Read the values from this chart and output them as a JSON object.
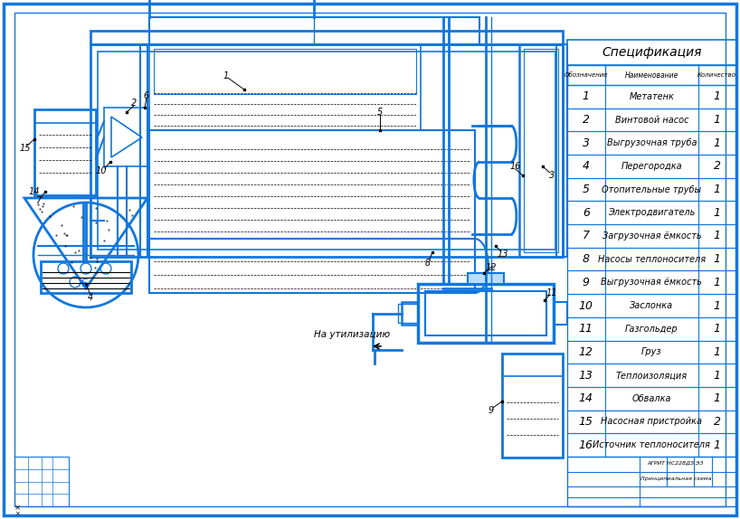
{
  "bg_color": "#ffffff",
  "lc": "#1177dd",
  "black": "#000000",
  "spec_title": "Спецификация",
  "spec_headers": [
    "Обозначение",
    "Наименование",
    "Количество"
  ],
  "spec_rows": [
    [
      "1",
      "Метатенк",
      "1"
    ],
    [
      "2",
      "Винтовой насос",
      "1"
    ],
    [
      "3",
      "Выгрузочная труба",
      "1"
    ],
    [
      "4",
      "Перегородка",
      "2"
    ],
    [
      "5",
      "Отопительные трубы",
      "1"
    ],
    [
      "6",
      "Электродвигатель",
      "1"
    ],
    [
      "7",
      "Загрузочная ёмкость",
      "1"
    ],
    [
      "8",
      "Насосы теплоносителя",
      "1"
    ],
    [
      "9",
      "Выгрузочная ёмкость",
      "1"
    ],
    [
      "10",
      "Заслонка",
      "1"
    ],
    [
      "11",
      "Газгольдер",
      "1"
    ],
    [
      "12",
      "Груз",
      "1"
    ],
    [
      "13",
      "Теплоизоляция",
      "1"
    ],
    [
      "14",
      "Обвалка",
      "1"
    ],
    [
      "15",
      "Насосная пристройка",
      "2"
    ],
    [
      "16",
      "Источник теплоносителя",
      "1"
    ]
  ],
  "annotation_text": "На утилизацию"
}
